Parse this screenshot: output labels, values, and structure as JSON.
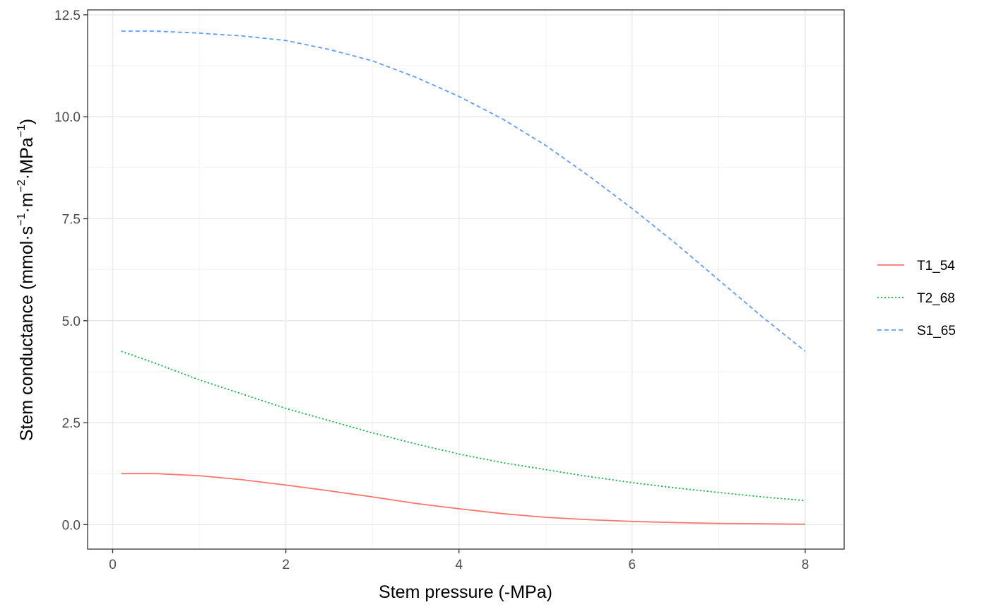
{
  "chart_data": {
    "type": "line",
    "title": "",
    "xlabel": "Stem pressure (-MPa)",
    "ylabel": {
      "prefix": "Stem conductance  (mmol",
      "s": "s",
      "s_exp": "−1",
      "m": "m",
      "m_exp": "−2",
      "mpa": "MPa",
      "mpa_exp": "−1",
      "suffix": ")"
    },
    "xlim": [
      -0.29,
      8.45
    ],
    "ylim": [
      -0.6,
      12.62
    ],
    "x_ticks": [
      0,
      2,
      4,
      6,
      8
    ],
    "x_tick_labels": [
      "0",
      "2",
      "4",
      "6",
      "8"
    ],
    "y_ticks": [
      0,
      2.5,
      5,
      7.5,
      10,
      12.5
    ],
    "y_tick_labels": [
      "0.0",
      "2.5",
      "5.0",
      "7.5",
      "10.0",
      "12.5"
    ],
    "grid": true,
    "legend_position": "right",
    "x": [
      0.1,
      0.5,
      1,
      1.5,
      2,
      2.5,
      3,
      3.5,
      4,
      4.5,
      5,
      5.5,
      6,
      6.5,
      7,
      7.5,
      8
    ],
    "series": [
      {
        "name": "T1_54",
        "color": "#F8766D",
        "dash": "solid",
        "values": [
          1.25,
          1.25,
          1.2,
          1.1,
          0.97,
          0.83,
          0.68,
          0.52,
          0.39,
          0.27,
          0.18,
          0.12,
          0.08,
          0.05,
          0.03,
          0.02,
          0.01
        ]
      },
      {
        "name": "T2_68",
        "color": "#00BA38",
        "dash": "dotted",
        "values": [
          4.25,
          3.95,
          3.55,
          3.2,
          2.85,
          2.55,
          2.25,
          1.98,
          1.73,
          1.52,
          1.35,
          1.18,
          1.03,
          0.9,
          0.79,
          0.68,
          0.59
        ]
      },
      {
        "name": "S1_65",
        "color": "#619CFF",
        "dash": "dashed",
        "values": [
          12.1,
          12.1,
          12.05,
          11.98,
          11.87,
          11.65,
          11.37,
          10.97,
          10.5,
          9.95,
          9.3,
          8.55,
          7.75,
          6.9,
          6.0,
          5.1,
          4.25
        ]
      }
    ]
  }
}
